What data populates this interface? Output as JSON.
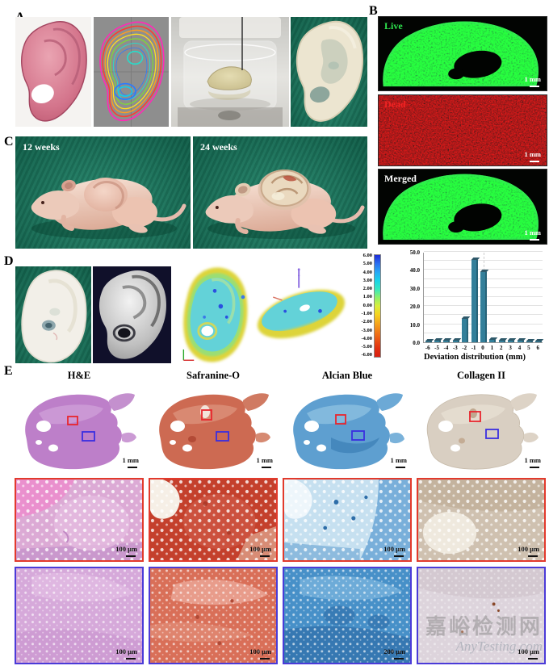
{
  "figure": {
    "panel_labels": {
      "A": "A",
      "B": "B",
      "C": "C",
      "D": "D",
      "E": "E"
    }
  },
  "panelB": {
    "items": [
      {
        "label": "Live",
        "label_color": "#2ee34e",
        "scale": "1 mm"
      },
      {
        "label": "Dead",
        "label_color": "#f22424",
        "scale": "1 mm"
      },
      {
        "label": "Merged",
        "label_color": "#ffffff",
        "scale": "1 mm"
      }
    ]
  },
  "panelC": {
    "items": [
      {
        "label": "12 weeks"
      },
      {
        "label": "24 weeks"
      }
    ]
  },
  "panelD": {
    "colorbar_ticks": [
      "6.00",
      "5.00",
      "4.00",
      "3.00",
      "2.00",
      "1.00",
      "0.00",
      "-1.00",
      "-2.00",
      "-3.00",
      "-4.00",
      "-5.00",
      "-6.00"
    ]
  },
  "chart_data": {
    "type": "bar",
    "title": "",
    "xlabel": "Deviation distribution (mm)",
    "ylabel": "",
    "categories": [
      -6,
      -5,
      -4,
      -3,
      -2,
      -1,
      0,
      1,
      2,
      3,
      4,
      5,
      6
    ],
    "values": [
      0.5,
      1,
      1,
      1,
      13,
      45.5,
      39,
      1.2,
      1,
      1,
      1,
      0.5,
      0.2
    ],
    "ylim": [
      0,
      50
    ],
    "y_ticks": [
      "0.0",
      "10.0",
      "20.0",
      "30.0",
      "40.0",
      "50.0"
    ],
    "grid": true,
    "legend": "none",
    "bar_color": "#337f9a"
  },
  "panelE": {
    "columns": [
      "H&E",
      "Safranine-O",
      "Alcian Blue",
      "Collagen II"
    ],
    "row1": {
      "scales": [
        "1 mm",
        "1 mm",
        "1 mm",
        "1 mm"
      ]
    },
    "row2": {
      "scales": [
        "100 μm",
        "100 μm",
        "100 μm",
        "100 μm"
      ]
    },
    "row3": {
      "scales": [
        "100 μm",
        "100 μm",
        "200 μm",
        "100 μm"
      ]
    }
  },
  "watermark": {
    "line1": "嘉峪检测网",
    "line2": "AnyTesting.com"
  }
}
